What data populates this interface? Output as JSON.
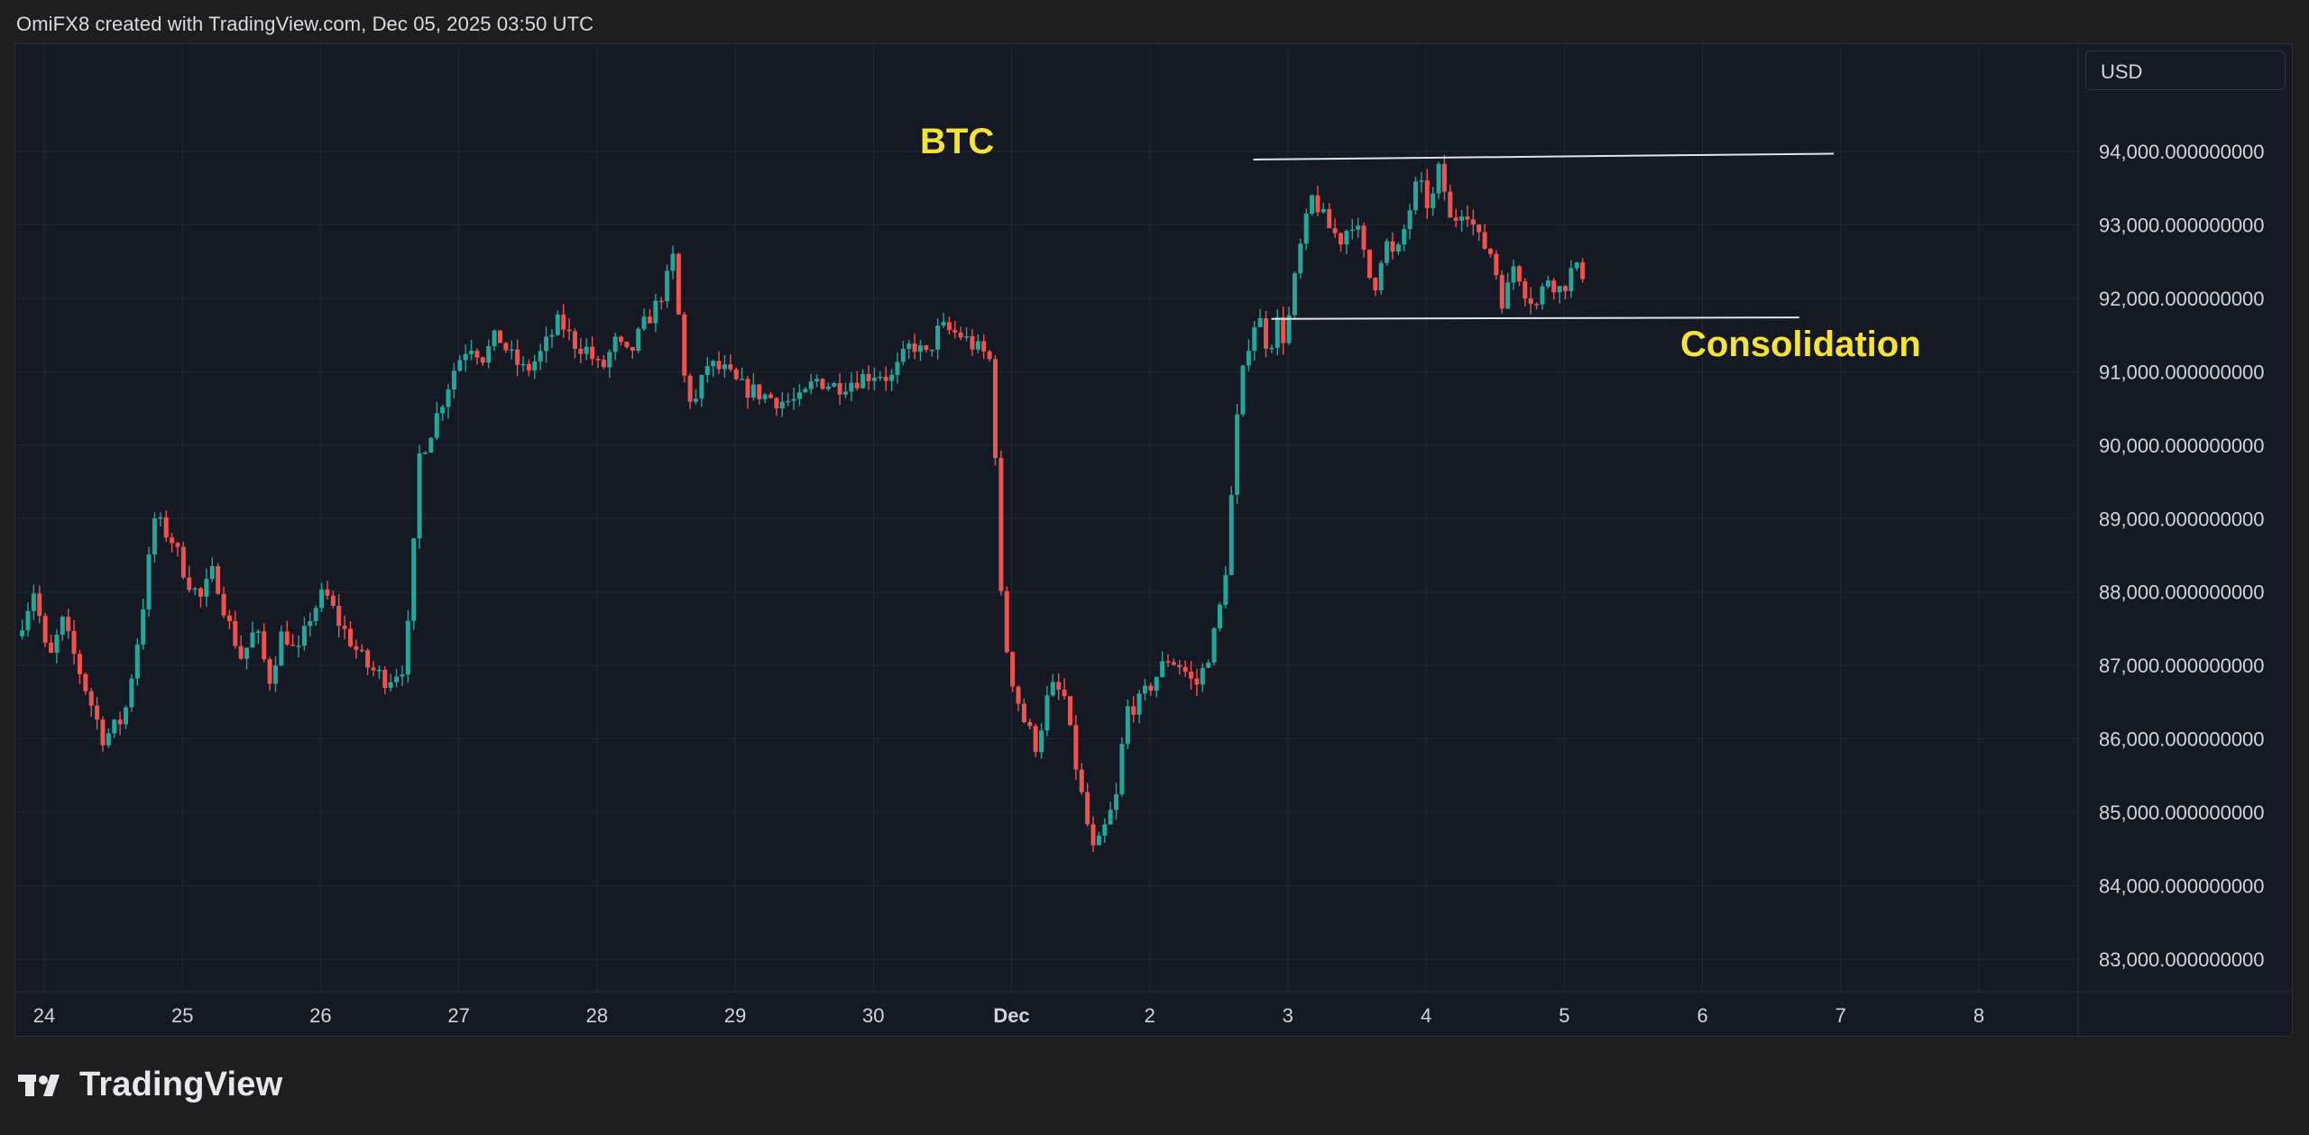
{
  "header": {
    "caption": "OmiFX8 created with TradingView.com, Dec 05, 2025 03:50 UTC"
  },
  "currency": "USD",
  "brand": {
    "name": "TradingView",
    "icon": "tradingview-logo-icon"
  },
  "colors": {
    "up": "#26a69a",
    "down": "#ef5350",
    "annotation": "#f5e23b",
    "grid": "#232735",
    "axis_text": "#d1d4dc",
    "trendline": "#e0e3eb"
  },
  "chart_data": {
    "type": "candlestick",
    "symbol_label": "BTC",
    "x_tick_labels": [
      "24",
      "25",
      "26",
      "27",
      "28",
      "29",
      "30",
      "Dec",
      "2",
      "3",
      "4",
      "5",
      "6",
      "7",
      "8"
    ],
    "y_tick_labels": [
      "94,000.000000000",
      "93,000.000000000",
      "92,000.000000000",
      "91,000.000000000",
      "90,000.000000000",
      "89,000.000000000",
      "88,000.000000000",
      "87,000.000000000",
      "86,000.000000000",
      "85,000.000000000",
      "84,000.000000000",
      "83,000.000000000"
    ],
    "y_ticks": [
      94000,
      93000,
      92000,
      91000,
      90000,
      89000,
      88000,
      87000,
      86000,
      85000,
      84000,
      83000
    ],
    "x_tick_days": [
      24,
      25,
      26,
      27,
      28,
      29,
      30,
      31,
      32,
      33,
      34,
      35,
      36,
      37,
      38
    ],
    "ylim": [
      82860,
      94900
    ],
    "xlim_days": [
      23.82,
      38.75
    ],
    "grid": true,
    "keypoints": [
      [
        23.82,
        87400
      ],
      [
        23.95,
        88050
      ],
      [
        24.05,
        87000
      ],
      [
        24.15,
        87600
      ],
      [
        24.3,
        86800
      ],
      [
        24.45,
        86000
      ],
      [
        24.6,
        86300
      ],
      [
        24.72,
        87600
      ],
      [
        24.82,
        89000
      ],
      [
        24.95,
        88700
      ],
      [
        25.05,
        88200
      ],
      [
        25.15,
        87900
      ],
      [
        25.25,
        88300
      ],
      [
        25.35,
        87600
      ],
      [
        25.45,
        87100
      ],
      [
        25.55,
        87500
      ],
      [
        25.65,
        86800
      ],
      [
        25.75,
        87500
      ],
      [
        25.85,
        87100
      ],
      [
        25.95,
        87700
      ],
      [
        26.05,
        88000
      ],
      [
        26.15,
        87600
      ],
      [
        26.25,
        87300
      ],
      [
        26.35,
        87000
      ],
      [
        26.5,
        86800
      ],
      [
        26.62,
        87000
      ],
      [
        26.68,
        87900
      ],
      [
        26.72,
        89800
      ],
      [
        26.8,
        90100
      ],
      [
        26.9,
        90600
      ],
      [
        27.0,
        91100
      ],
      [
        27.1,
        91400
      ],
      [
        27.2,
        91200
      ],
      [
        27.3,
        91500
      ],
      [
        27.4,
        91200
      ],
      [
        27.5,
        91000
      ],
      [
        27.6,
        91200
      ],
      [
        27.75,
        91700
      ],
      [
        27.85,
        91400
      ],
      [
        27.95,
        91300
      ],
      [
        28.05,
        91000
      ],
      [
        28.15,
        91400
      ],
      [
        28.25,
        91200
      ],
      [
        28.35,
        91600
      ],
      [
        28.45,
        91900
      ],
      [
        28.52,
        92200
      ],
      [
        28.58,
        92600
      ],
      [
        28.64,
        91000
      ],
      [
        28.72,
        90500
      ],
      [
        28.82,
        91100
      ],
      [
        28.95,
        91000
      ],
      [
        29.05,
        90800
      ],
      [
        29.2,
        90700
      ],
      [
        29.35,
        90600
      ],
      [
        29.5,
        90600
      ],
      [
        29.6,
        90900
      ],
      [
        29.75,
        90800
      ],
      [
        29.9,
        90900
      ],
      [
        30.05,
        91000
      ],
      [
        30.15,
        90900
      ],
      [
        30.3,
        91400
      ],
      [
        30.4,
        91200
      ],
      [
        30.5,
        91600
      ],
      [
        30.65,
        91500
      ],
      [
        30.78,
        91300
      ],
      [
        30.86,
        91200
      ],
      [
        30.9,
        90100
      ],
      [
        30.94,
        88000
      ],
      [
        31.0,
        87000
      ],
      [
        31.1,
        86300
      ],
      [
        31.2,
        85900
      ],
      [
        31.3,
        86700
      ],
      [
        31.4,
        86600
      ],
      [
        31.45,
        86000
      ],
      [
        31.55,
        85000
      ],
      [
        31.62,
        84400
      ],
      [
        31.7,
        84800
      ],
      [
        31.78,
        85200
      ],
      [
        31.85,
        86400
      ],
      [
        31.95,
        86500
      ],
      [
        32.05,
        86800
      ],
      [
        32.15,
        87100
      ],
      [
        32.25,
        87000
      ],
      [
        32.35,
        86700
      ],
      [
        32.42,
        87000
      ],
      [
        32.5,
        87500
      ],
      [
        32.56,
        88100
      ],
      [
        32.6,
        89000
      ],
      [
        32.66,
        90500
      ],
      [
        32.72,
        91300
      ],
      [
        32.8,
        91800
      ],
      [
        32.88,
        91300
      ],
      [
        32.95,
        91700
      ],
      [
        33.0,
        91400
      ],
      [
        33.1,
        92600
      ],
      [
        33.2,
        93400
      ],
      [
        33.3,
        93000
      ],
      [
        33.4,
        92800
      ],
      [
        33.5,
        93100
      ],
      [
        33.58,
        92500
      ],
      [
        33.64,
        92100
      ],
      [
        33.72,
        92800
      ],
      [
        33.8,
        92500
      ],
      [
        33.9,
        93200
      ],
      [
        33.96,
        93600
      ],
      [
        34.05,
        93200
      ],
      [
        34.12,
        93800
      ],
      [
        34.2,
        93000
      ],
      [
        34.3,
        93300
      ],
      [
        34.4,
        92800
      ],
      [
        34.5,
        92600
      ],
      [
        34.58,
        91900
      ],
      [
        34.66,
        92500
      ],
      [
        34.74,
        92100
      ],
      [
        34.82,
        91900
      ],
      [
        34.9,
        92300
      ],
      [
        35.0,
        92100
      ],
      [
        35.08,
        92400
      ],
      [
        35.14,
        92350
      ]
    ]
  },
  "annotations": {
    "symbol_label": "BTC",
    "consolidation_label": "Consolidation"
  }
}
